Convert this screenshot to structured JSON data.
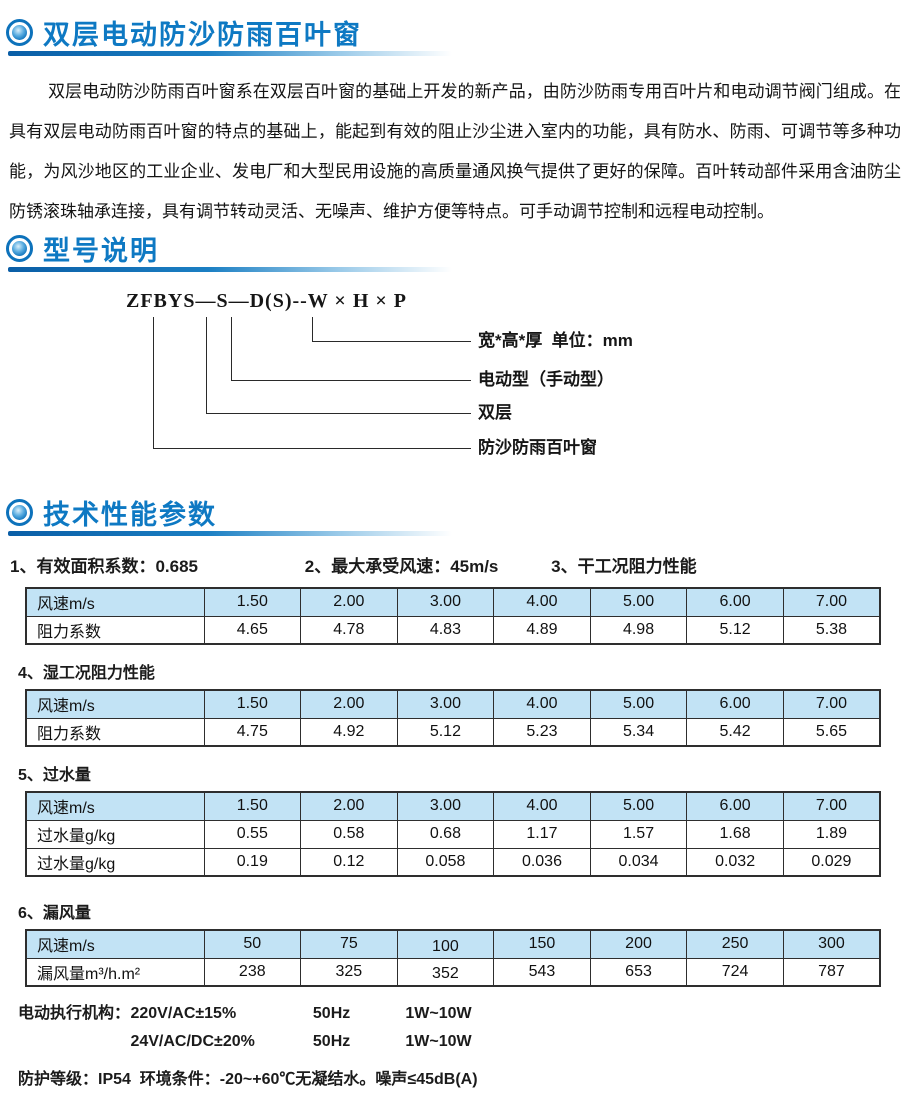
{
  "intro": {
    "title": "双层电动防沙防雨百叶窗",
    "paragraph": "双层电动防沙防雨百叶窗系在双层百叶窗的基础上开发的新产品，由防沙防雨专用百叶片和电动调节阀门组成。在具有双层电动防雨百叶窗的特点的基础上，能起到有效的阻止沙尘进入室内的功能，具有防水、防雨、可调节等多种功能，为风沙地区的工业企业、发电厂和大型民用设施的高质量通风换气提供了更好的保障。百叶转动部件采用含油防尘防锈滚珠轴承连接，具有调节转动灵活、无噪声、维护方便等特点。可手动调节控制和远程电动控制。"
  },
  "model": {
    "title": "型号说明",
    "code": "ZFBYS—S—D(S)--W × H × P",
    "labels": [
      "宽*高*厚  单位：mm",
      "电动型（手动型）",
      "双层",
      "防沙防雨百叶窗"
    ]
  },
  "tech": {
    "title": "技术性能参数",
    "params": [
      "1、有效面积系数：0.685",
      "2、最大承受风速：45m/s",
      "3、干工况阻力性能"
    ],
    "tables": [
      {
        "name": "干工况阻力性能",
        "header": [
          "风速m/s",
          "1.50",
          "2.00",
          "3.00",
          "4.00",
          "5.00",
          "6.00",
          "7.00"
        ],
        "rows": [
          [
            "阻力系数",
            "4.65",
            "4.78",
            "4.83",
            "4.89",
            "4.98",
            "5.12",
            "5.38"
          ]
        ]
      },
      {
        "caption": "4、湿工况阻力性能",
        "header": [
          "风速m/s",
          "1.50",
          "2.00",
          "3.00",
          "4.00",
          "5.00",
          "6.00",
          "7.00"
        ],
        "rows": [
          [
            "阻力系数",
            "4.75",
            "4.92",
            "5.12",
            "5.23",
            "5.34",
            "5.42",
            "5.65"
          ]
        ]
      },
      {
        "caption": "5、过水量",
        "header": [
          "风速m/s",
          "1.50",
          "2.00",
          "3.00",
          "4.00",
          "5.00",
          "6.00",
          "7.00"
        ],
        "rows": [
          [
            "过水量g/kg",
            "0.55",
            "0.58",
            "0.68",
            "1.17",
            "1.57",
            "1.68",
            "1.89"
          ],
          [
            "过水量g/kg",
            "0.19",
            "0.12",
            "0.058",
            "0.036",
            "0.034",
            "0.032",
            "0.029"
          ]
        ]
      },
      {
        "caption": "6、漏风量",
        "header": [
          "风速m/s",
          "50",
          "75",
          "100",
          "150",
          "200",
          "250",
          "300"
        ],
        "rows": [
          [
            "漏风量m³/h.m²",
            "238",
            "325",
            "352",
            "543",
            "653",
            "724",
            "787"
          ]
        ]
      }
    ]
  },
  "power": {
    "label": "电动执行机构：",
    "rows": [
      {
        "voltage": "220V/AC±15%",
        "freq": "50Hz",
        "power": "1W~10W"
      },
      {
        "voltage": "24V/AC/DC±20%",
        "freq": "50Hz",
        "power": "1W~10W"
      }
    ],
    "protection": "防护等级：IP54  环境条件：-20~+60℃无凝结水。噪声≤45dB(A)"
  },
  "colors": {
    "accent_blue": "#0e79c3",
    "table_header_bg": "#c2e3f5",
    "table_border": "#2e2e2e"
  }
}
